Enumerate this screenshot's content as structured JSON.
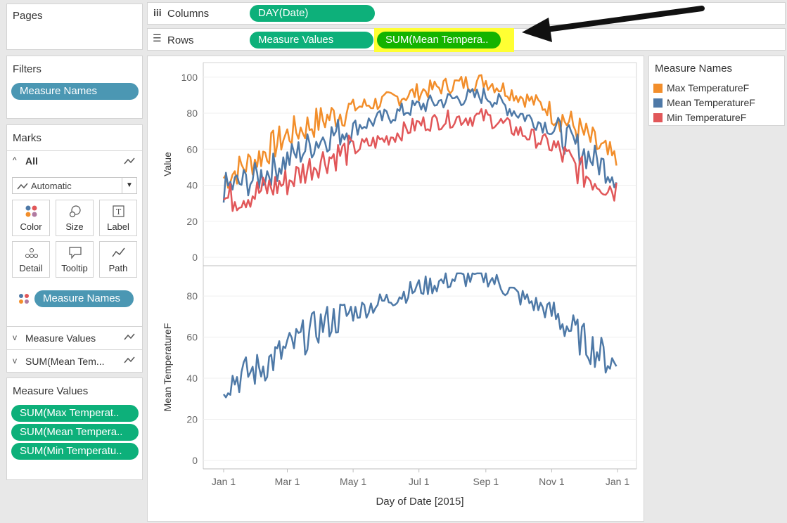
{
  "pages": {
    "title": "Pages"
  },
  "columns_shelf": {
    "label": "Columns",
    "pills": [
      "DAY(Date)"
    ]
  },
  "rows_shelf": {
    "label": "Rows",
    "pills": [
      "Measure Values",
      "SUM(Mean Tempera.."
    ]
  },
  "filters": {
    "title": "Filters",
    "pills": [
      "Measure Names"
    ]
  },
  "marks": {
    "title": "Marks",
    "all_label": "All",
    "mark_type": "Automatic",
    "buttons": [
      "Color",
      "Size",
      "Label",
      "Detail",
      "Tooltip",
      "Path"
    ],
    "color_pill": "Measure Names",
    "rows": [
      "Measure Values",
      "SUM(Mean Tem..."
    ]
  },
  "measure_values": {
    "title": "Measure Values",
    "pills": [
      "SUM(Max Temperat..",
      "SUM(Mean Tempera..",
      "SUM(Min Temperatu.."
    ]
  },
  "legend": {
    "title": "Measure Names",
    "items": [
      {
        "label": "Max TemperatureF",
        "color": "#f28e2b"
      },
      {
        "label": "Mean TemperatureF",
        "color": "#4e79a7"
      },
      {
        "label": "Min TemperatureF",
        "color": "#e15759"
      }
    ]
  },
  "chart_data": {
    "type": "line",
    "xlabel": "Day of Date [2015]",
    "x_ticks": [
      "Jan 1",
      "Mar 1",
      "May 1",
      "Jul 1",
      "Sep 1",
      "Nov 1",
      "Jan 1"
    ],
    "x_dates": [
      "2015-01-01",
      "2015-02-01",
      "2015-03-01",
      "2015-04-01",
      "2015-05-01",
      "2015-06-01",
      "2015-07-01",
      "2015-08-01",
      "2015-09-01",
      "2015-10-01",
      "2015-11-01",
      "2015-12-01",
      "2015-12-31"
    ],
    "panes": [
      {
        "ylabel": "Value",
        "ylim": [
          0,
          105
        ],
        "y_ticks": [
          0,
          20,
          40,
          60,
          80,
          100
        ],
        "series": [
          {
            "name": "Max TemperatureF",
            "color": "#f28e2b",
            "values": [
              44,
              55,
              68,
              76,
              83,
              87,
              92,
              96,
              98,
              90,
              82,
              68,
              52
            ]
          },
          {
            "name": "Mean TemperatureF",
            "color": "#4e79a7",
            "values": [
              38,
              44,
              54,
              66,
              72,
              78,
              84,
              88,
              90,
              80,
              72,
              58,
              46
            ]
          },
          {
            "name": "Min TemperatureF",
            "color": "#e15759",
            "values": [
              32,
              36,
              42,
              54,
              60,
              66,
              74,
              77,
              78,
              70,
              62,
              46,
              38
            ]
          }
        ]
      },
      {
        "ylabel": "Mean TemperatureF",
        "ylim": [
          0,
          92
        ],
        "y_ticks": [
          0,
          20,
          40,
          60,
          80
        ],
        "series": [
          {
            "name": "Mean TemperatureF",
            "color": "#4e79a7",
            "values": [
              38,
              44,
              54,
              66,
              72,
              78,
              84,
              88,
              90,
              80,
              72,
              58,
              46
            ]
          }
        ]
      }
    ]
  },
  "annotation": {
    "highlighted_pill": "SUM(Mean Tempera..",
    "highlight_color": "#ffff33"
  }
}
